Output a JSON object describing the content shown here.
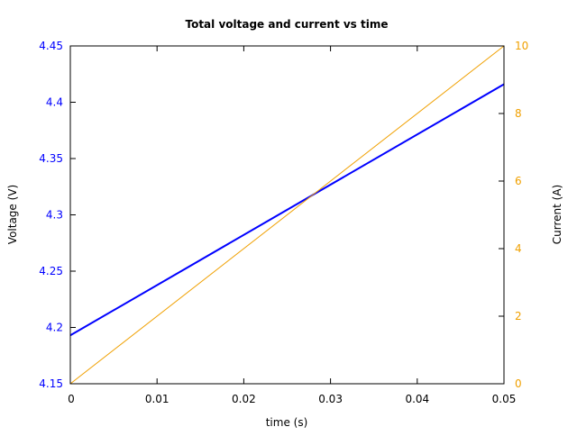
{
  "chart_data": {
    "type": "line",
    "title": "Total voltage and current vs time",
    "xlabel": "time (s)",
    "ylabel": "Voltage (V)",
    "y2label": "Current (A)",
    "xlim": [
      0,
      0.05
    ],
    "ylim": [
      4.15,
      4.45
    ],
    "y2lim": [
      0,
      10
    ],
    "xticks": [
      "0",
      "0.01",
      "0.02",
      "0.03",
      "0.04",
      "0.05"
    ],
    "yticks": [
      "4.15",
      "4.2",
      "4.25",
      "4.3",
      "4.35",
      "4.4",
      "4.45"
    ],
    "y2ticks": [
      "0",
      "2",
      "4",
      "6",
      "8",
      "10"
    ],
    "grid": false,
    "series": [
      {
        "axis": "left",
        "color": "#0000ff",
        "x": [
          0,
          0.05
        ],
        "y": [
          4.193,
          4.416
        ]
      },
      {
        "axis": "right",
        "color": "#f0a000",
        "x": [
          0,
          0.05
        ],
        "y": [
          0,
          10
        ]
      }
    ]
  }
}
